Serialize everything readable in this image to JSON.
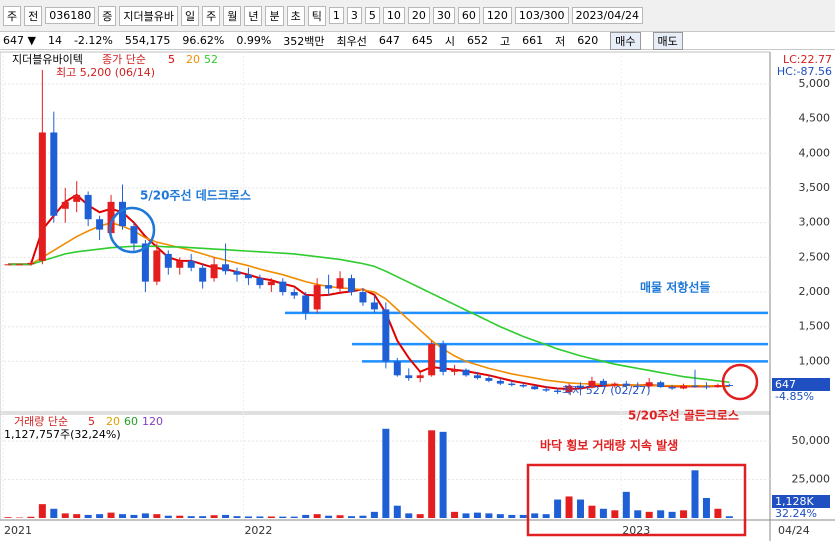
{
  "toolbar": {
    "row1": [
      "주",
      "전",
      "036180",
      "증",
      "지더블유바",
      "일",
      "주",
      "월",
      "년",
      "분",
      "초",
      "틱",
      "1",
      "3",
      "5",
      "10",
      "20",
      "30",
      "60",
      "120",
      "103/300",
      "2023/04/24"
    ],
    "row2": [
      "647 ▼",
      "14",
      "-2.12%",
      "554,175",
      "96.62%",
      "0.99%",
      "352백만",
      "최우선",
      "647",
      "645",
      "시",
      "652",
      "고",
      "661",
      "저",
      "620"
    ],
    "buttons": [
      "매수",
      "매도"
    ]
  },
  "chart_data": {
    "type": "candlestick",
    "name": "지더블유바이텍",
    "ma_label": "종가 단순",
    "categories": [
      "2021",
      null,
      null,
      null,
      null,
      null,
      null,
      null,
      null,
      null,
      null,
      null,
      null,
      null,
      null,
      null,
      null,
      null,
      null,
      null,
      null,
      "2022",
      null,
      null,
      null,
      null,
      null,
      null,
      null,
      null,
      null,
      null,
      null,
      null,
      null,
      null,
      null,
      null,
      null,
      null,
      null,
      null,
      null,
      null,
      null,
      null,
      null,
      null,
      null,
      null,
      null,
      null,
      null,
      null,
      "2023",
      null,
      null,
      null,
      null,
      null,
      null,
      null,
      null,
      null
    ],
    "x_end_label": "04/24",
    "open": [
      2400,
      2400,
      2400,
      2450,
      4300,
      3200,
      3300,
      3400,
      3050,
      2850,
      3300,
      2950,
      2700,
      2150,
      2550,
      2350,
      2450,
      2350,
      2200,
      2400,
      2300,
      2250,
      2200,
      2100,
      2150,
      2000,
      1950,
      1750,
      2100,
      2050,
      2200,
      2000,
      1850,
      1750,
      1000,
      800,
      760,
      800,
      1250,
      850,
      880,
      800,
      760,
      720,
      680,
      660,
      640,
      600,
      580,
      560,
      650,
      620,
      720,
      660,
      680,
      650,
      640,
      700,
      630,
      610,
      650,
      640,
      630,
      660
    ],
    "high": [
      2400,
      2400,
      2450,
      5200,
      4600,
      3500,
      3600,
      3450,
      3100,
      3400,
      3550,
      3000,
      2750,
      2700,
      2600,
      2500,
      2550,
      2400,
      2500,
      2700,
      2350,
      2350,
      2250,
      2200,
      2200,
      2050,
      2000,
      2200,
      2250,
      2300,
      2250,
      2050,
      1950,
      1850,
      1050,
      900,
      850,
      1300,
      1300,
      950,
      900,
      850,
      800,
      760,
      720,
      690,
      660,
      640,
      620,
      680,
      700,
      780,
      750,
      700,
      720,
      700,
      760,
      720,
      660,
      680,
      880,
      700,
      680,
      680
    ],
    "low": [
      2400,
      2400,
      2380,
      2400,
      3000,
      3000,
      3150,
      2950,
      2750,
      2800,
      2900,
      2600,
      2000,
      2100,
      2250,
      2250,
      2300,
      2050,
      2150,
      2250,
      2150,
      2100,
      2050,
      2000,
      1950,
      1900,
      1600,
      1700,
      1950,
      2000,
      1950,
      1800,
      1700,
      900,
      780,
      720,
      700,
      780,
      800,
      800,
      780,
      740,
      700,
      660,
      640,
      620,
      590,
      560,
      530,
      527,
      600,
      610,
      640,
      620,
      630,
      600,
      620,
      620,
      590,
      600,
      620,
      600,
      620,
      640
    ],
    "close": [
      2400,
      2400,
      2420,
      4300,
      3100,
      3300,
      3400,
      3050,
      2900,
      3300,
      2950,
      2700,
      2150,
      2600,
      2350,
      2450,
      2350,
      2150,
      2400,
      2300,
      2250,
      2200,
      2100,
      2150,
      2000,
      1950,
      1700,
      2100,
      2050,
      2200,
      2000,
      1850,
      1750,
      1000,
      800,
      760,
      800,
      1250,
      850,
      880,
      800,
      760,
      720,
      680,
      660,
      640,
      600,
      580,
      560,
      650,
      620,
      720,
      660,
      680,
      650,
      640,
      700,
      630,
      610,
      650,
      640,
      630,
      660,
      647
    ],
    "ma": [
      {
        "name": "5",
        "color": "#e00000",
        "values": [
          2400,
          2400,
          2400,
          2900,
          3100,
          3300,
          3400,
          3250,
          3150,
          3200,
          3150,
          3000,
          2800,
          2650,
          2500,
          2450,
          2450,
          2400,
          2350,
          2330,
          2290,
          2250,
          2200,
          2170,
          2120,
          2080,
          1960,
          1950,
          1960,
          1990,
          2010,
          2040,
          1960,
          1700,
          1300,
          1050,
          850,
          920,
          900,
          880,
          860,
          830,
          800,
          760,
          720,
          690,
          660,
          630,
          610,
          605,
          610,
          640,
          650,
          660,
          660,
          655,
          660,
          650,
          640,
          640,
          640,
          640,
          645,
          645
        ]
      },
      {
        "name": "20",
        "color": "#f08c00",
        "values": [
          null,
          null,
          2400,
          2500,
          2600,
          2700,
          2800,
          2880,
          2950,
          3000,
          2950,
          2880,
          2780,
          2720,
          2680,
          2640,
          2600,
          2550,
          2500,
          2460,
          2420,
          2380,
          2330,
          2290,
          2250,
          2200,
          2150,
          2110,
          2080,
          2060,
          2050,
          2030,
          2000,
          1900,
          1750,
          1600,
          1450,
          1300,
          1180,
          1080,
          1000,
          950,
          900,
          860,
          820,
          790,
          760,
          730,
          710,
          690,
          680,
          675,
          670,
          665,
          660,
          655,
          655,
          650,
          650,
          648,
          648,
          647,
          647,
          648
        ]
      },
      {
        "name": "52",
        "color": "#2ecc2e",
        "values": [
          2400,
          2400,
          2400,
          2450,
          2500,
          2550,
          2580,
          2600,
          2620,
          2640,
          2650,
          2660,
          2660,
          2660,
          2650,
          2650,
          2640,
          2630,
          2620,
          2610,
          2600,
          2590,
          2580,
          2570,
          2560,
          2550,
          2530,
          2510,
          2490,
          2470,
          2440,
          2410,
          2370,
          2300,
          2220,
          2140,
          2060,
          1980,
          1900,
          1820,
          1740,
          1660,
          1580,
          1500,
          1430,
          1360,
          1300,
          1240,
          1180,
          1130,
          1080,
          1040,
          1000,
          960,
          930,
          900,
          870,
          840,
          810,
          780,
          760,
          740,
          720,
          700
        ]
      }
    ],
    "ylim": [
      300,
      5460
    ],
    "yticks": [
      {
        "value": 5000,
        "label": "5,000"
      },
      {
        "value": 4500,
        "label": "4,500"
      },
      {
        "value": 4000,
        "label": "4,000"
      },
      {
        "value": 3500,
        "label": "3,500"
      },
      {
        "value": 3000,
        "label": "3,000"
      },
      {
        "value": 2500,
        "label": "2,500"
      },
      {
        "value": 2000,
        "label": "2,000"
      },
      {
        "value": 1500,
        "label": "1,500"
      },
      {
        "value": 1000,
        "label": "1,000"
      }
    ],
    "resistance": [
      1700,
      1250,
      1000
    ],
    "last_price": "647",
    "last_change": "-4.85%",
    "lc": "LC:22.77",
    "hc": "HC:-87.56",
    "high_label": "최고 5,200 (06/14)",
    "low_label": "최저 527 (02/27)",
    "annotations": [
      "5/20주선 데드크로스",
      "매물 저항선들",
      "5/20주선 골든크로스",
      "바닥 횡보 거래량 지속 발생"
    ],
    "volume": {
      "label": "거래량 단순",
      "ma_names": [
        "5",
        "20",
        "60",
        "120"
      ],
      "total": "1,127,757주(32,24%)",
      "values": [
        500,
        300,
        800,
        9000,
        6000,
        3000,
        2500,
        2000,
        2500,
        3500,
        2500,
        2000,
        3000,
        2500,
        1500,
        1500,
        1200,
        1200,
        1800,
        2000,
        1200,
        1000,
        1000,
        1000,
        900,
        900,
        2000,
        2500,
        1500,
        1800,
        1200,
        1500,
        4000,
        58000,
        8000,
        3000,
        2500,
        57000,
        56000,
        4000,
        3000,
        3500,
        3000,
        2500,
        2000,
        2000,
        3000,
        2500,
        12000,
        14000,
        12000,
        8000,
        6000,
        5000,
        17000,
        5000,
        4000,
        5000,
        4000,
        5000,
        31000,
        13000,
        6000,
        1128
      ],
      "ylim": [
        0,
        65000
      ],
      "yticks": [
        {
          "value": 50000,
          "label": "50,000"
        },
        {
          "value": 25000,
          "label": "25,000"
        }
      ],
      "last": "1,128K",
      "last_pct": "32.24%"
    }
  }
}
